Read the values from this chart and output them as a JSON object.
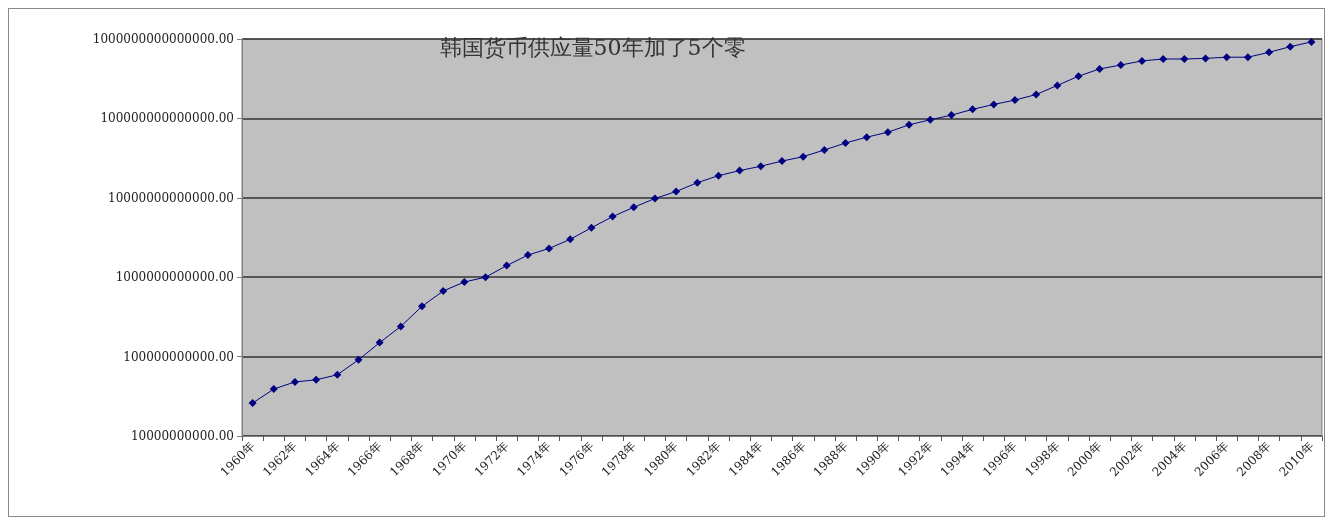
{
  "chart_data": {
    "type": "line",
    "title": "韩国货币供应量50年加了5个零",
    "categories": [
      "1960年",
      null,
      "1962年",
      null,
      "1964年",
      null,
      "1966年",
      null,
      "1968年",
      null,
      "1970年",
      null,
      "1972年",
      null,
      "1974年",
      null,
      "1976年",
      null,
      "1978年",
      null,
      "1980年",
      null,
      "1982年",
      null,
      "1984年",
      null,
      "1986年",
      null,
      "1988年",
      null,
      "1990年",
      null,
      "1992年",
      null,
      "1994年",
      null,
      "1996年",
      null,
      "1998年",
      null,
      "2000年",
      null,
      "2002年",
      null,
      "2004年",
      null,
      "2006年",
      null,
      "2008年",
      null,
      "2010年"
    ],
    "series": [
      {
        "color": "#000080",
        "values": [
          26000000000.0,
          39000000000.0,
          48000000000.0,
          51000000000.0,
          59000000000.0,
          91000000000.0,
          150000000000.0,
          240000000000.0,
          430000000000.0,
          670000000000.0,
          870000000000.0,
          1000000000000.0,
          1400000000000.0,
          1900000000000.0,
          2300000000000.0,
          3000000000000.0,
          4200000000000.0,
          5800000000000.0,
          7600000000000.0,
          9800000000000.0,
          12000000000000.0,
          15500000000000.0,
          19000000000000.0,
          22000000000000.0,
          25000000000000.0,
          29000000000000.0,
          33000000000000.0,
          40000000000000.0,
          49000000000000.0,
          58000000000000.0,
          67000000000000.0,
          83000000000000.0,
          96000000000000.0,
          110000000000000.0,
          130000000000000.0,
          150000000000000.0,
          170000000000000.0,
          200000000000000.0,
          260000000000000.0,
          340000000000000.0,
          420000000000000.0,
          470000000000000.0,
          530000000000000.0,
          560000000000000.0,
          560000000000000.0,
          570000000000000.0,
          590000000000000.0,
          590000000000000.0,
          680000000000000.0,
          800000000000000.0,
          920000000000000.0
        ]
      }
    ],
    "log": "y",
    "ylim": [
      10000000000.0,
      1000000000000000.0
    ],
    "yticks": [
      {
        "value": 10000000000.0,
        "label": "10000000000.00"
      },
      {
        "value": 100000000000.0,
        "label": "100000000000.00"
      },
      {
        "value": 1000000000000.0,
        "label": "1000000000000.00"
      },
      {
        "value": 10000000000000.0,
        "label": "10000000000000.00"
      },
      {
        "value": 100000000000000.0,
        "label": "100000000000000.00"
      },
      {
        "value": 1000000000000000.0,
        "label": "1000000000000000.00"
      }
    ],
    "grid": "y",
    "marker": "diamond",
    "line_style": "solid"
  }
}
